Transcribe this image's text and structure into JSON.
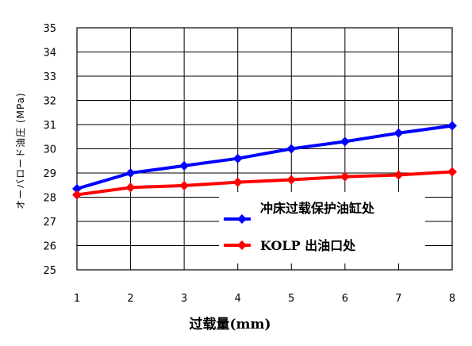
{
  "chart_data": {
    "type": "line",
    "x": [
      1,
      2,
      3,
      4,
      5,
      6,
      7,
      8
    ],
    "series": [
      {
        "name": "冲床过载保护油缸处",
        "color": "#0000ff",
        "values": [
          28.35,
          29.0,
          29.3,
          29.6,
          30.0,
          30.3,
          30.65,
          30.95
        ]
      },
      {
        "name": "KOLP 出油口处",
        "color": "#ff0000",
        "values": [
          28.1,
          28.4,
          28.48,
          28.62,
          28.72,
          28.85,
          28.92,
          29.05
        ]
      }
    ],
    "xlabel": "过载量(mm)",
    "ylabel": "オーバロード油圧 (MPa)",
    "xlim": [
      1,
      8
    ],
    "ylim": [
      25,
      35
    ],
    "y_ticks": [
      25,
      26,
      27,
      28,
      29,
      30,
      31,
      32,
      33,
      34,
      35
    ],
    "x_ticks": [
      1,
      2,
      3,
      4,
      5,
      6,
      7,
      8
    ],
    "grid": true,
    "legend": "lower-right"
  }
}
